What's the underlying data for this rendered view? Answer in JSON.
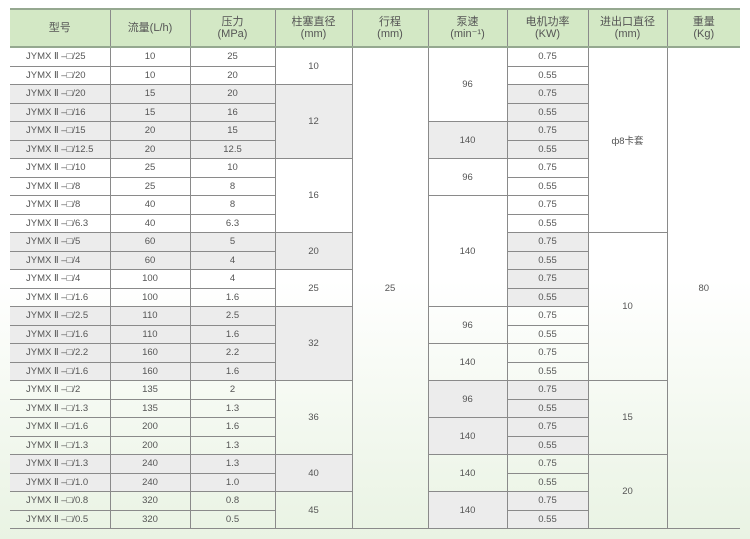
{
  "headers": [
    {
      "line1": "型号",
      "line2": ""
    },
    {
      "line1": "流量(L/h)",
      "line2": ""
    },
    {
      "line1": "压力",
      "line2": "(MPa)"
    },
    {
      "line1": "柱塞直径",
      "line2": "(mm)"
    },
    {
      "line1": "行程",
      "line2": "(mm)"
    },
    {
      "line1": "泵速",
      "line2": "(min⁻¹)"
    },
    {
      "line1": "电机功率",
      "line2": "(KW)"
    },
    {
      "line1": "进出口直径",
      "line2": "(mm)"
    },
    {
      "line1": "重量",
      "line2": "(Kg)"
    }
  ],
  "rows": [
    {
      "model": "JYMX Ⅱ –□/25",
      "flow": "10",
      "pressure": "25",
      "motor": "0.75"
    },
    {
      "model": "JYMX Ⅱ –□/20",
      "flow": "10",
      "pressure": "20",
      "motor": "0.55"
    },
    {
      "model": "JYMX Ⅱ –□/20",
      "flow": "15",
      "pressure": "20",
      "motor": "0.75"
    },
    {
      "model": "JYMX Ⅱ –□/16",
      "flow": "15",
      "pressure": "16",
      "motor": "0.55"
    },
    {
      "model": "JYMX Ⅱ –□/15",
      "flow": "20",
      "pressure": "15",
      "motor": "0.75"
    },
    {
      "model": "JYMX Ⅱ –□/12.5",
      "flow": "20",
      "pressure": "12.5",
      "motor": "0.55"
    },
    {
      "model": "JYMX Ⅱ –□/10",
      "flow": "25",
      "pressure": "10",
      "motor": "0.75"
    },
    {
      "model": "JYMX Ⅱ –□/8",
      "flow": "25",
      "pressure": "8",
      "motor": "0.55"
    },
    {
      "model": "JYMX Ⅱ –□/8",
      "flow": "40",
      "pressure": "8",
      "motor": "0.75"
    },
    {
      "model": "JYMX Ⅱ –□/6.3",
      "flow": "40",
      "pressure": "6.3",
      "motor": "0.55"
    },
    {
      "model": "JYMX Ⅱ –□/5",
      "flow": "60",
      "pressure": "5",
      "motor": "0.75"
    },
    {
      "model": "JYMX Ⅱ –□/4",
      "flow": "60",
      "pressure": "4",
      "motor": "0.55"
    },
    {
      "model": "JYMX Ⅱ –□/4",
      "flow": "100",
      "pressure": "4",
      "motor": "0.75"
    },
    {
      "model": "JYMX Ⅱ –□/1.6",
      "flow": "100",
      "pressure": "1.6",
      "motor": "0.55"
    },
    {
      "model": "JYMX Ⅱ –□/2.5",
      "flow": "110",
      "pressure": "2.5",
      "motor": "0.75"
    },
    {
      "model": "JYMX Ⅱ –□/1.6",
      "flow": "110",
      "pressure": "1.6",
      "motor": "0.55"
    },
    {
      "model": "JYMX Ⅱ –□/2.2",
      "flow": "160",
      "pressure": "2.2",
      "motor": "0.75"
    },
    {
      "model": "JYMX Ⅱ –□/1.6",
      "flow": "160",
      "pressure": "1.6",
      "motor": "0.55"
    },
    {
      "model": "JYMX Ⅱ –□/2",
      "flow": "135",
      "pressure": "2",
      "motor": "0.75"
    },
    {
      "model": "JYMX Ⅱ –□/1.3",
      "flow": "135",
      "pressure": "1.3",
      "motor": "0.55"
    },
    {
      "model": "JYMX Ⅱ –□/1.6",
      "flow": "200",
      "pressure": "1.6",
      "motor": "0.75"
    },
    {
      "model": "JYMX Ⅱ –□/1.3",
      "flow": "200",
      "pressure": "1.3",
      "motor": "0.55"
    },
    {
      "model": "JYMX Ⅱ –□/1.3",
      "flow": "240",
      "pressure": "1.3",
      "motor": "0.75"
    },
    {
      "model": "JYMX Ⅱ –□/1.0",
      "flow": "240",
      "pressure": "1.0",
      "motor": "0.55"
    },
    {
      "model": "JYMX Ⅱ –□/0.8",
      "flow": "320",
      "pressure": "0.8",
      "motor": "0.75"
    },
    {
      "model": "JYMX Ⅱ –□/0.5",
      "flow": "320",
      "pressure": "0.5",
      "motor": "0.55"
    }
  ],
  "plunger_groups": [
    {
      "value": "10",
      "span": 2,
      "shaded": false
    },
    {
      "value": "12",
      "span": 4,
      "shaded": true
    },
    {
      "value": "16",
      "span": 4,
      "shaded": false
    },
    {
      "value": "20",
      "span": 2,
      "shaded": true
    },
    {
      "value": "25",
      "span": 2,
      "shaded": false
    },
    {
      "value": "32",
      "span": 4,
      "shaded": true
    },
    {
      "value": "36",
      "span": 4,
      "shaded": false
    },
    {
      "value": "40",
      "span": 2,
      "shaded": true
    },
    {
      "value": "45",
      "span": 2,
      "shaded": false
    }
  ],
  "stroke": {
    "value": "25",
    "span": 26
  },
  "pump_speed_groups": [
    {
      "value": "96",
      "span": 4,
      "shaded": false
    },
    {
      "value": "140",
      "span": 2,
      "shaded": true
    },
    {
      "value": "96",
      "span": 2,
      "shaded": false
    },
    {
      "value": "140",
      "span": 6,
      "shaded": false
    },
    {
      "value": "96",
      "span": 2,
      "shaded": false
    },
    {
      "value": "140",
      "span": 2,
      "shaded": false
    },
    {
      "value": "96",
      "span": 2,
      "shaded": true
    },
    {
      "value": "140",
      "span": 2,
      "shaded": true
    },
    {
      "value": "140",
      "span": 2,
      "shaded": false
    },
    {
      "value": "140",
      "span": 2,
      "shaded": true
    }
  ],
  "motor_shaded_rows": [
    3,
    4,
    5,
    6,
    11,
    12,
    13,
    14,
    19,
    20,
    21,
    22,
    25,
    26
  ],
  "port_groups": [
    {
      "value": "ф8卡套",
      "span": 10
    },
    {
      "value": "10",
      "span": 8
    },
    {
      "value": "15",
      "span": 4
    },
    {
      "value": "20",
      "span": 4
    }
  ],
  "weight": {
    "value": "80",
    "span": 26
  },
  "colors": {
    "header_bg": "#d3e8c5",
    "shaded_row": "#ececec",
    "border": "#8a8a8a"
  }
}
